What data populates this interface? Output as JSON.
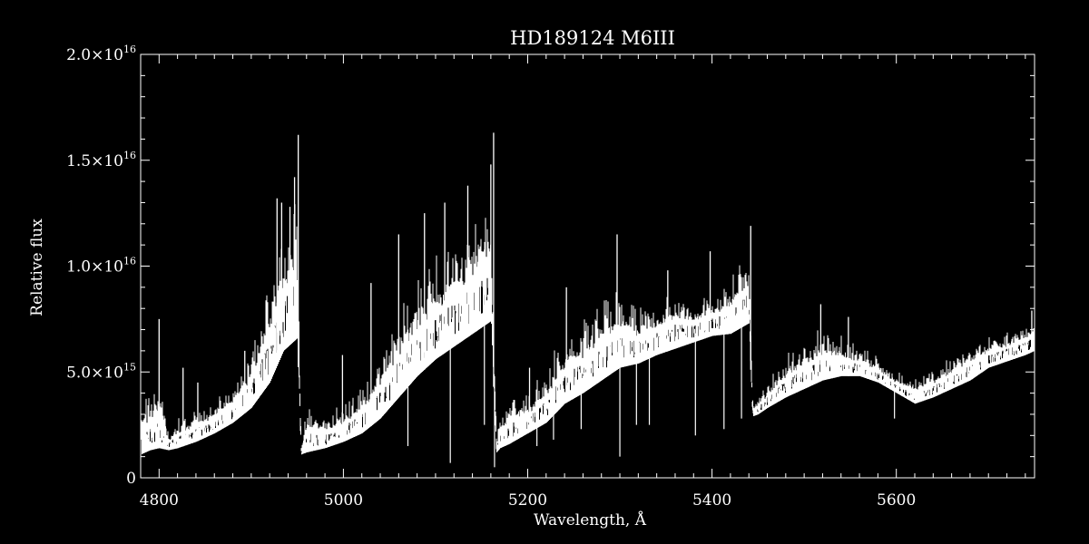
{
  "chart_data": {
    "type": "line",
    "title": "HD189124   M6III",
    "xlabel": "Wavelength, Å",
    "ylabel": "Relative flux",
    "xlim": [
      4780,
      5750
    ],
    "ylim": [
      0,
      2e+16
    ],
    "xticks": [
      4800,
      5000,
      5200,
      5400,
      5600
    ],
    "xtick_labels": [
      "4800",
      "5000",
      "5200",
      "5400",
      "5600"
    ],
    "yticks": [
      0,
      5000000000000000.0,
      1e+16,
      1.5e+16,
      2e+16
    ],
    "ytick_labels": [
      {
        "mantissa": "0",
        "exponent": ""
      },
      {
        "mantissa": "5.0×10",
        "exponent": "15"
      },
      {
        "mantissa": "1.0×10",
        "exponent": "16"
      },
      {
        "mantissa": "1.5×10",
        "exponent": "16"
      },
      {
        "mantissa": "2.0×10",
        "exponent": "16"
      }
    ],
    "grid": false,
    "colors": {
      "background": "#000000",
      "foreground": "#ffffff"
    },
    "series": [
      {
        "envelope_x": [
          4780,
          4790,
          4800,
          4810,
          4820,
          4840,
          4860,
          4880,
          4900,
          4920,
          4935,
          4950,
          4954,
          4960,
          4980,
          5000,
          5020,
          5040,
          5060,
          5080,
          5100,
          5120,
          5140,
          5160,
          5166,
          5170,
          5180,
          5200,
          5220,
          5240,
          5260,
          5280,
          5300,
          5320,
          5340,
          5360,
          5380,
          5400,
          5420,
          5440,
          5444,
          5450,
          5460,
          5480,
          5500,
          5520,
          5540,
          5560,
          5580,
          5600,
          5620,
          5640,
          5660,
          5680,
          5700,
          5720,
          5740,
          5750
        ],
        "envelope_low": [
          1100000000000000.0,
          1300000000000000.0,
          1400000000000000.0,
          1300000000000000.0,
          1400000000000000.0,
          1700000000000000.0,
          2100000000000000.0,
          2600000000000000.0,
          3300000000000000.0,
          4500000000000000.0,
          6000000000000000.0,
          6600000000000000.0,
          1100000000000000.0,
          1200000000000000.0,
          1400000000000000.0,
          1700000000000000.0,
          2100000000000000.0,
          2800000000000000.0,
          3800000000000000.0,
          4800000000000000.0,
          5600000000000000.0,
          6200000000000000.0,
          6800000000000000.0,
          7400000000000000.0,
          1200000000000000.0,
          1400000000000000.0,
          1600000000000000.0,
          2100000000000000.0,
          2600000000000000.0,
          3500000000000000.0,
          4000000000000000.0,
          4600000000000000.0,
          5200000000000000.0,
          5400000000000000.0,
          5800000000000000.0,
          6100000000000000.0,
          6400000000000000.0,
          6700000000000000.0,
          6800000000000000.0,
          7300000000000000.0,
          2900000000000000.0,
          3000000000000000.0,
          3300000000000000.0,
          3800000000000000.0,
          4200000000000000.0,
          4600000000000000.0,
          4800000000000000.0,
          4800000000000000.0,
          4500000000000000.0,
          4000000000000000.0,
          3500000000000000.0,
          3800000000000000.0,
          4200000000000000.0,
          4600000000000000.0,
          5200000000000000.0,
          5500000000000000.0,
          5800000000000000.0,
          6000000000000000.0
        ],
        "envelope_high": [
          3500000000000000.0,
          4200000000000000.0,
          5000000000000000.0,
          2200000000000000.0,
          2800000000000000.0,
          3200000000000000.0,
          3700000000000000.0,
          4600000000000000.0,
          6000000000000000.0,
          9500000000000000.0,
          1.25e+16,
          1.35e+16,
          1500000000000000.0,
          3500000000000000.0,
          3000000000000000.0,
          3500000000000000.0,
          4500000000000000.0,
          6000000000000000.0,
          8000000000000000.0,
          9500000000000000.0,
          1.05e+16,
          1.15e+16,
          1.25e+16,
          1.4e+16,
          2000000000000000.0,
          3000000000000000.0,
          4000000000000000.0,
          4000000000000000.0,
          5200000000000000.0,
          7000000000000000.0,
          7500000000000000.0,
          8500000000000000.0,
          9000000000000000.0,
          8000000000000000.0,
          8500000000000000.0,
          9000000000000000.0,
          8500000000000000.0,
          8800000000000000.0,
          9500000000000000.0,
          1.1e+16,
          3500000000000000.0,
          3800000000000000.0,
          4500000000000000.0,
          5800000000000000.0,
          6500000000000000.0,
          7200000000000000.0,
          6800000000000000.0,
          6200000000000000.0,
          5800000000000000.0,
          5000000000000000.0,
          4800000000000000.0,
          5200000000000000.0,
          5800000000000000.0,
          6300000000000000.0,
          6800000000000000.0,
          7000000000000000.0,
          7300000000000000.0,
          7600000000000000.0
        ],
        "spikes": [
          [
            4800,
            7500000000000000.0
          ],
          [
            4826,
            5200000000000000.0
          ],
          [
            4842,
            4500000000000000.0
          ],
          [
            4893,
            6000000000000000.0
          ],
          [
            4928,
            1.32e+16
          ],
          [
            4933,
            1.3e+16
          ],
          [
            4942,
            1.28e+16
          ],
          [
            4947,
            1.42e+16
          ],
          [
            4951,
            1.62e+16
          ],
          [
            4999,
            5800000000000000.0
          ],
          [
            5030,
            9200000000000000.0
          ],
          [
            5060,
            1.15e+16
          ],
          [
            5088,
            1.25e+16
          ],
          [
            5110,
            1.3e+16
          ],
          [
            5135,
            1.38e+16
          ],
          [
            5160,
            1.48e+16
          ],
          [
            5163,
            1.63e+16
          ],
          [
            5202,
            5200000000000000.0
          ],
          [
            5242,
            9000000000000000.0
          ],
          [
            5297,
            1.15e+16
          ],
          [
            5352,
            9800000000000000.0
          ],
          [
            5398,
            1.07e+16
          ],
          [
            5442,
            1.19e+16
          ],
          [
            5518,
            8200000000000000.0
          ],
          [
            5548,
            7600000000000000.0
          ],
          [
            5747,
            7900000000000000.0
          ]
        ],
        "dips": [
          [
            4807,
            2000000000000000.0
          ],
          [
            4849,
            2000000000000000.0
          ],
          [
            5070,
            1500000000000000.0
          ],
          [
            5116,
            700000000000000.0
          ],
          [
            5153,
            2500000000000000.0
          ],
          [
            5164,
            500000000000000.0
          ],
          [
            5210,
            1500000000000000.0
          ],
          [
            5228,
            1800000000000000.0
          ],
          [
            5258,
            2300000000000000.0
          ],
          [
            5300,
            1000000000000000.0
          ],
          [
            5318,
            2500000000000000.0
          ],
          [
            5332,
            2500000000000000.0
          ],
          [
            5382,
            2000000000000000.0
          ],
          [
            5413,
            2300000000000000.0
          ],
          [
            5432,
            2800000000000000.0
          ],
          [
            5598,
            2800000000000000.0
          ]
        ]
      }
    ]
  }
}
